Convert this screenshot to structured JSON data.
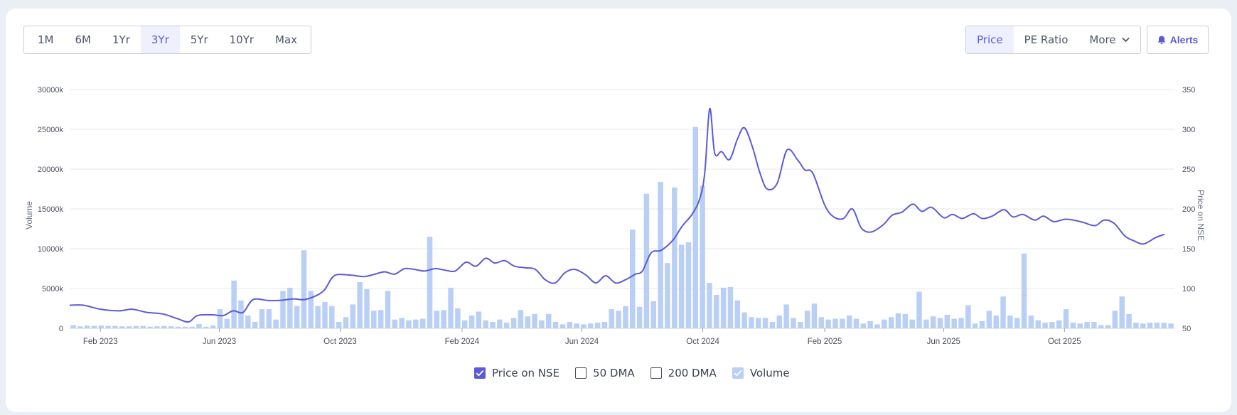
{
  "periods": [
    "1M",
    "6M",
    "1Yr",
    "3Yr",
    "5Yr",
    "10Yr",
    "Max"
  ],
  "active_period": "3Yr",
  "chart_types": {
    "price": "Price",
    "pe": "PE Ratio",
    "more": "More"
  },
  "alerts_label": "Alerts",
  "colors": {
    "accent": "#5b5bd6",
    "volume": "#b9cff5",
    "grid": "#e6e8ec",
    "axis_text": "#4a4f5c"
  },
  "legend": [
    {
      "label": "Price on NSE",
      "checked": true,
      "style": "accent"
    },
    {
      "label": "50 DMA",
      "checked": false,
      "style": "empty"
    },
    {
      "label": "200 DMA",
      "checked": false,
      "style": "empty"
    },
    {
      "label": "Volume",
      "checked": true,
      "style": "volume"
    }
  ],
  "chart_data": {
    "type": "line",
    "ylabel": "Volume",
    "y2label": "Price on NSE",
    "x_ticks": [
      "Feb 2023",
      "Jun 2023",
      "Oct 2023",
      "Feb 2024",
      "Jun 2024",
      "Oct 2024",
      "Feb 2025",
      "Jun 2025",
      "Oct 2025"
    ],
    "y_ticks": [
      "0",
      "5000k",
      "10000k",
      "15000k",
      "20000k",
      "25000k",
      "30000k"
    ],
    "y2_ticks": [
      "50",
      "100",
      "150",
      "200",
      "250",
      "300",
      "350"
    ],
    "ylim": [
      0,
      30000
    ],
    "y2lim": [
      50,
      350
    ],
    "grid": true,
    "x_range": [
      "2023-01-01",
      "2026-01-20"
    ],
    "volume_series": {
      "name": "Volume",
      "unit": "k",
      "values": [
        400,
        250,
        350,
        300,
        350,
        300,
        300,
        250,
        250,
        300,
        300,
        200,
        250,
        300,
        250,
        200,
        200,
        200,
        550,
        200,
        350,
        2400,
        1200,
        6000,
        3500,
        1600,
        800,
        2400,
        2400,
        1100,
        4700,
        5100,
        2800,
        9800,
        4700,
        2800,
        3300,
        2800,
        800,
        1400,
        3000,
        5800,
        4900,
        2200,
        2300,
        4700,
        1100,
        1300,
        1000,
        1100,
        1200,
        11500,
        2200,
        2300,
        5100,
        2500,
        1000,
        1600,
        2100,
        1000,
        800,
        1100,
        700,
        1300,
        2300,
        1500,
        1800,
        1000,
        1800,
        800,
        500,
        800,
        600,
        500,
        600,
        700,
        800,
        2400,
        2200,
        2800,
        12400,
        2700,
        16900,
        3400,
        18400,
        8200,
        17700,
        10500,
        10800,
        25300,
        17900,
        5700,
        4200,
        5100,
        5200,
        3500,
        2000,
        1400,
        1300,
        1300,
        800,
        1600,
        3000,
        1300,
        800,
        2200,
        3100,
        1400,
        1100,
        1200,
        1200,
        1600,
        1200,
        600,
        900,
        500,
        1100,
        1400,
        1900,
        1800,
        1100,
        4600,
        1100,
        1500,
        1300,
        1700,
        1200,
        1300,
        2900,
        600,
        900,
        2200,
        1600,
        4000,
        1600,
        1300,
        9400,
        1600,
        1000,
        700,
        800,
        1000,
        2400,
        700,
        600,
        800,
        800,
        400,
        400,
        2200,
        4000,
        1800,
        700,
        600,
        700,
        700,
        700,
        600
      ]
    },
    "price_series": {
      "name": "Price on NSE",
      "points": [
        [
          "2023-01-01",
          79
        ],
        [
          "2023-01-15",
          79
        ],
        [
          "2023-02-01",
          74
        ],
        [
          "2023-02-20",
          72
        ],
        [
          "2023-03-05",
          74
        ],
        [
          "2023-03-20",
          70
        ],
        [
          "2023-04-05",
          68
        ],
        [
          "2023-04-20",
          62
        ],
        [
          "2023-05-01",
          58
        ],
        [
          "2023-05-10",
          66
        ],
        [
          "2023-05-25",
          67
        ],
        [
          "2023-06-05",
          66
        ],
        [
          "2023-06-15",
          72
        ],
        [
          "2023-06-25",
          70
        ],
        [
          "2023-07-05",
          86
        ],
        [
          "2023-07-20",
          85
        ],
        [
          "2023-08-01",
          85
        ],
        [
          "2023-08-15",
          87
        ],
        [
          "2023-08-25",
          86
        ],
        [
          "2023-09-05",
          90
        ],
        [
          "2023-09-15",
          98
        ],
        [
          "2023-09-25",
          116
        ],
        [
          "2023-10-10",
          117
        ],
        [
          "2023-10-25",
          115
        ],
        [
          "2023-11-05",
          118
        ],
        [
          "2023-11-15",
          121
        ],
        [
          "2023-11-25",
          118
        ],
        [
          "2023-12-05",
          125
        ],
        [
          "2023-12-15",
          124
        ],
        [
          "2023-12-25",
          122
        ],
        [
          "2024-01-05",
          125
        ],
        [
          "2024-01-15",
          123
        ],
        [
          "2024-01-25",
          122
        ],
        [
          "2024-02-05",
          133
        ],
        [
          "2024-02-15",
          128
        ],
        [
          "2024-02-25",
          138
        ],
        [
          "2024-03-05",
          132
        ],
        [
          "2024-03-15",
          135
        ],
        [
          "2024-03-25",
          128
        ],
        [
          "2024-04-05",
          126
        ],
        [
          "2024-04-15",
          124
        ],
        [
          "2024-04-25",
          111
        ],
        [
          "2024-05-05",
          107
        ],
        [
          "2024-05-15",
          120
        ],
        [
          "2024-05-25",
          124
        ],
        [
          "2024-06-05",
          117
        ],
        [
          "2024-06-15",
          107
        ],
        [
          "2024-06-25",
          116
        ],
        [
          "2024-07-05",
          107
        ],
        [
          "2024-07-15",
          111
        ],
        [
          "2024-07-25",
          118
        ],
        [
          "2024-08-01",
          122
        ],
        [
          "2024-08-10",
          145
        ],
        [
          "2024-08-20",
          148
        ],
        [
          "2024-09-01",
          161
        ],
        [
          "2024-09-10",
          178
        ],
        [
          "2024-09-20",
          193
        ],
        [
          "2024-09-28",
          213
        ],
        [
          "2024-10-03",
          246
        ],
        [
          "2024-10-08",
          326
        ],
        [
          "2024-10-13",
          270
        ],
        [
          "2024-10-20",
          272
        ],
        [
          "2024-10-28",
          262
        ],
        [
          "2024-11-05",
          288
        ],
        [
          "2024-11-12",
          302
        ],
        [
          "2024-11-20",
          278
        ],
        [
          "2024-11-28",
          244
        ],
        [
          "2024-12-05",
          225
        ],
        [
          "2024-12-15",
          232
        ],
        [
          "2024-12-25",
          274
        ],
        [
          "2025-01-05",
          261
        ],
        [
          "2025-01-12",
          249
        ],
        [
          "2025-01-20",
          245
        ],
        [
          "2025-02-01",
          205
        ],
        [
          "2025-02-10",
          190
        ],
        [
          "2025-02-20",
          188
        ],
        [
          "2025-03-01",
          200
        ],
        [
          "2025-03-10",
          176
        ],
        [
          "2025-03-20",
          171
        ],
        [
          "2025-04-01",
          180
        ],
        [
          "2025-04-10",
          192
        ],
        [
          "2025-04-20",
          196
        ],
        [
          "2025-05-01",
          206
        ],
        [
          "2025-05-10",
          197
        ],
        [
          "2025-05-20",
          202
        ],
        [
          "2025-06-01",
          189
        ],
        [
          "2025-06-10",
          193
        ],
        [
          "2025-06-20",
          188
        ],
        [
          "2025-07-01",
          194
        ],
        [
          "2025-07-10",
          188
        ],
        [
          "2025-07-20",
          191
        ],
        [
          "2025-08-01",
          199
        ],
        [
          "2025-08-10",
          190
        ],
        [
          "2025-08-20",
          193
        ],
        [
          "2025-09-01",
          186
        ],
        [
          "2025-09-10",
          191
        ],
        [
          "2025-09-20",
          184
        ],
        [
          "2025-10-01",
          187
        ],
        [
          "2025-10-10",
          186
        ],
        [
          "2025-10-20",
          183
        ],
        [
          "2025-11-01",
          179
        ],
        [
          "2025-11-10",
          186
        ],
        [
          "2025-11-20",
          182
        ],
        [
          "2025-12-01",
          166
        ],
        [
          "2025-12-10",
          160
        ],
        [
          "2025-12-20",
          156
        ],
        [
          "2026-01-01",
          164
        ],
        [
          "2026-01-10",
          168
        ]
      ]
    }
  }
}
